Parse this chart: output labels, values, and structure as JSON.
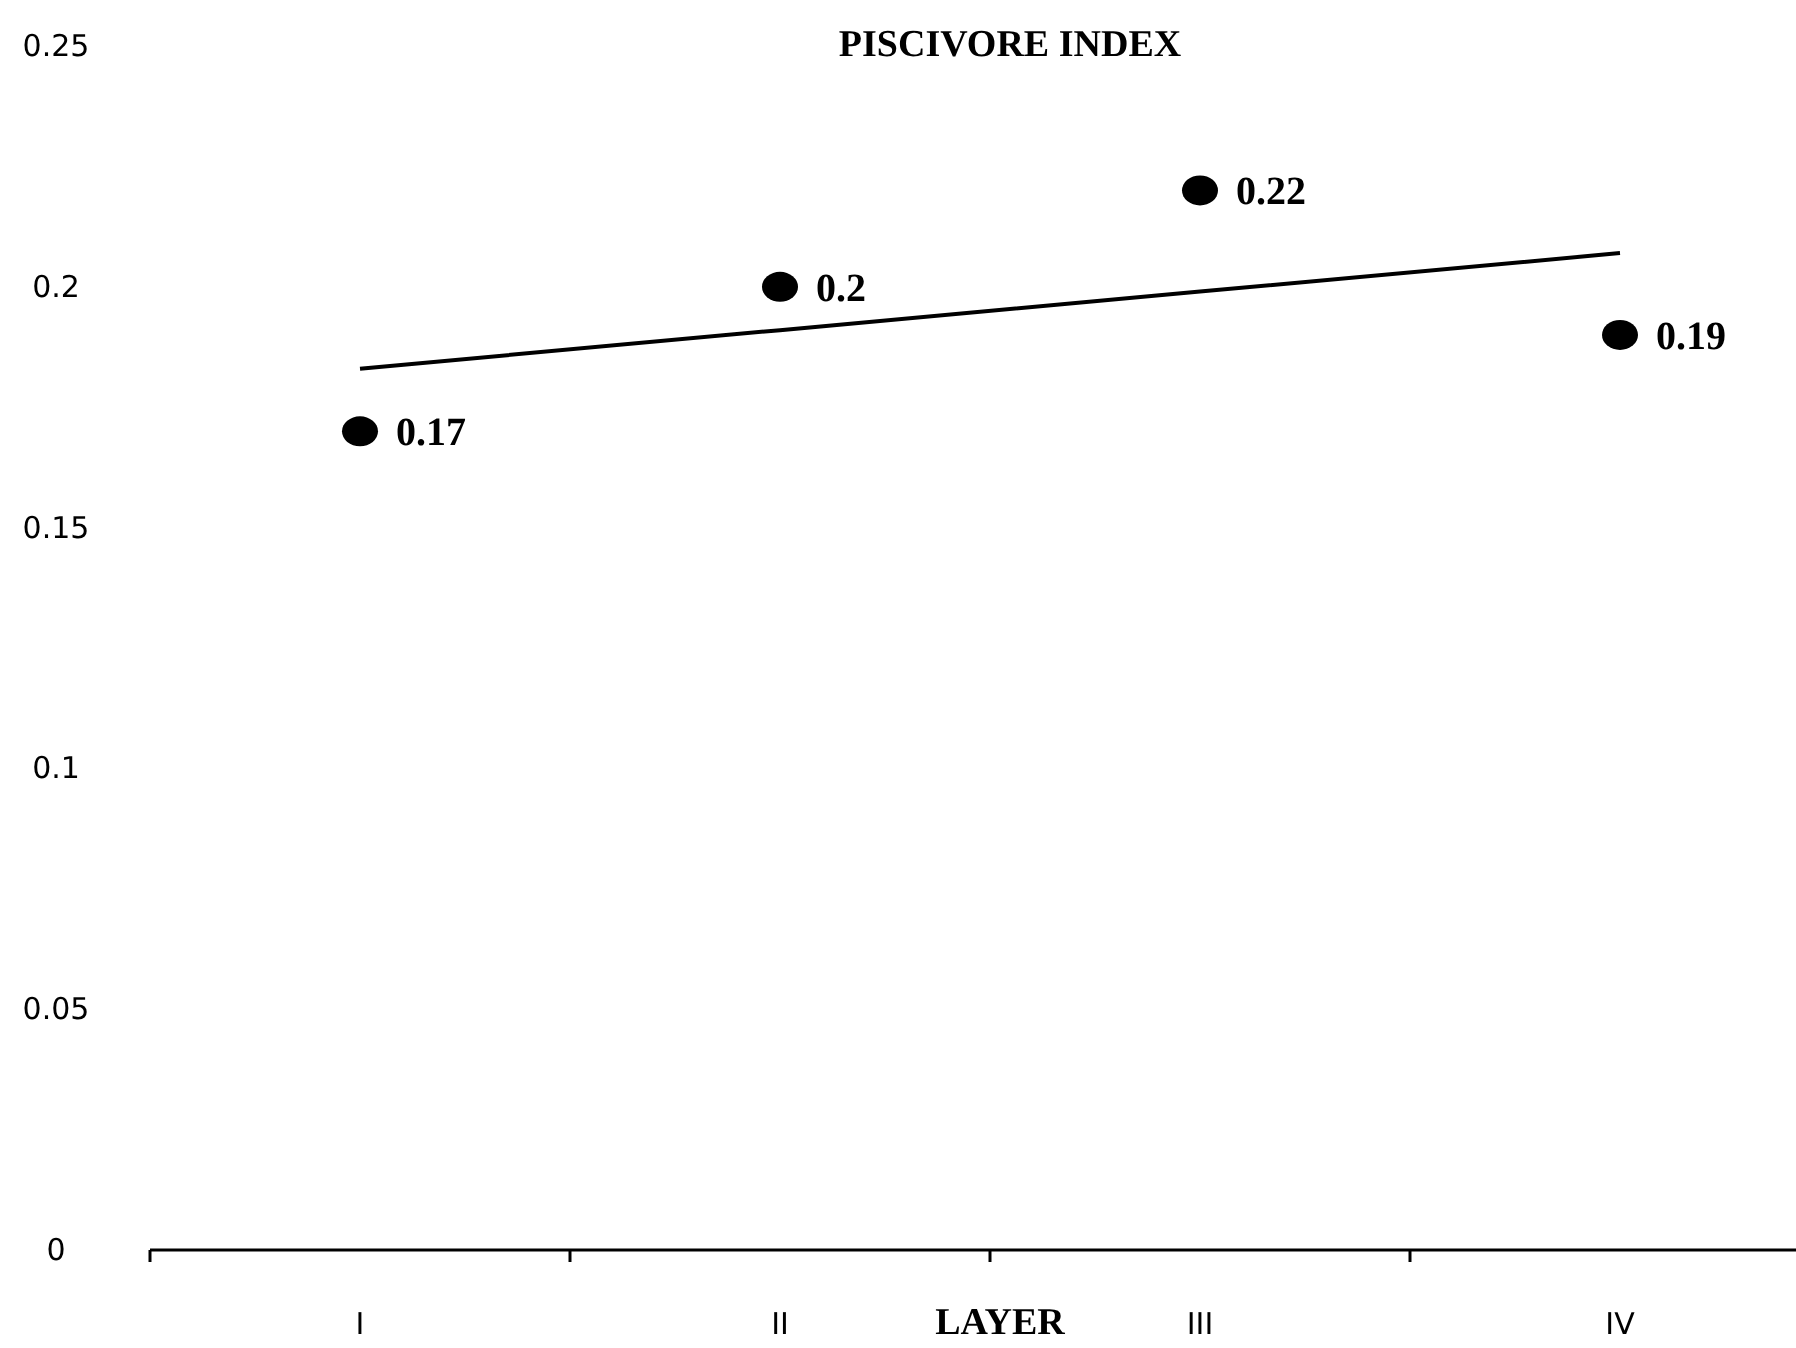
{
  "chart_data": {
    "type": "scatter",
    "title": "PISCIVORE INDEX",
    "xlabel": "LAYER",
    "categories": [
      "I",
      "II",
      "III",
      "IV"
    ],
    "series": [
      {
        "color": "#000000",
        "marker": "circle",
        "values": [
          0.17,
          0.2,
          0.22,
          0.19
        ],
        "value_labels": [
          "0.17",
          "0.2",
          "0.22",
          "0.19"
        ]
      },
      {
        "type": "line",
        "color": "#000000",
        "line_style": "solid",
        "values": [
          0.183,
          0.191,
          0.199,
          0.207
        ]
      }
    ],
    "ylim": [
      0,
      0.25
    ],
    "yticks": [
      0,
      0.05,
      0.1,
      0.15,
      0.2,
      0.25
    ],
    "grid": false
  }
}
